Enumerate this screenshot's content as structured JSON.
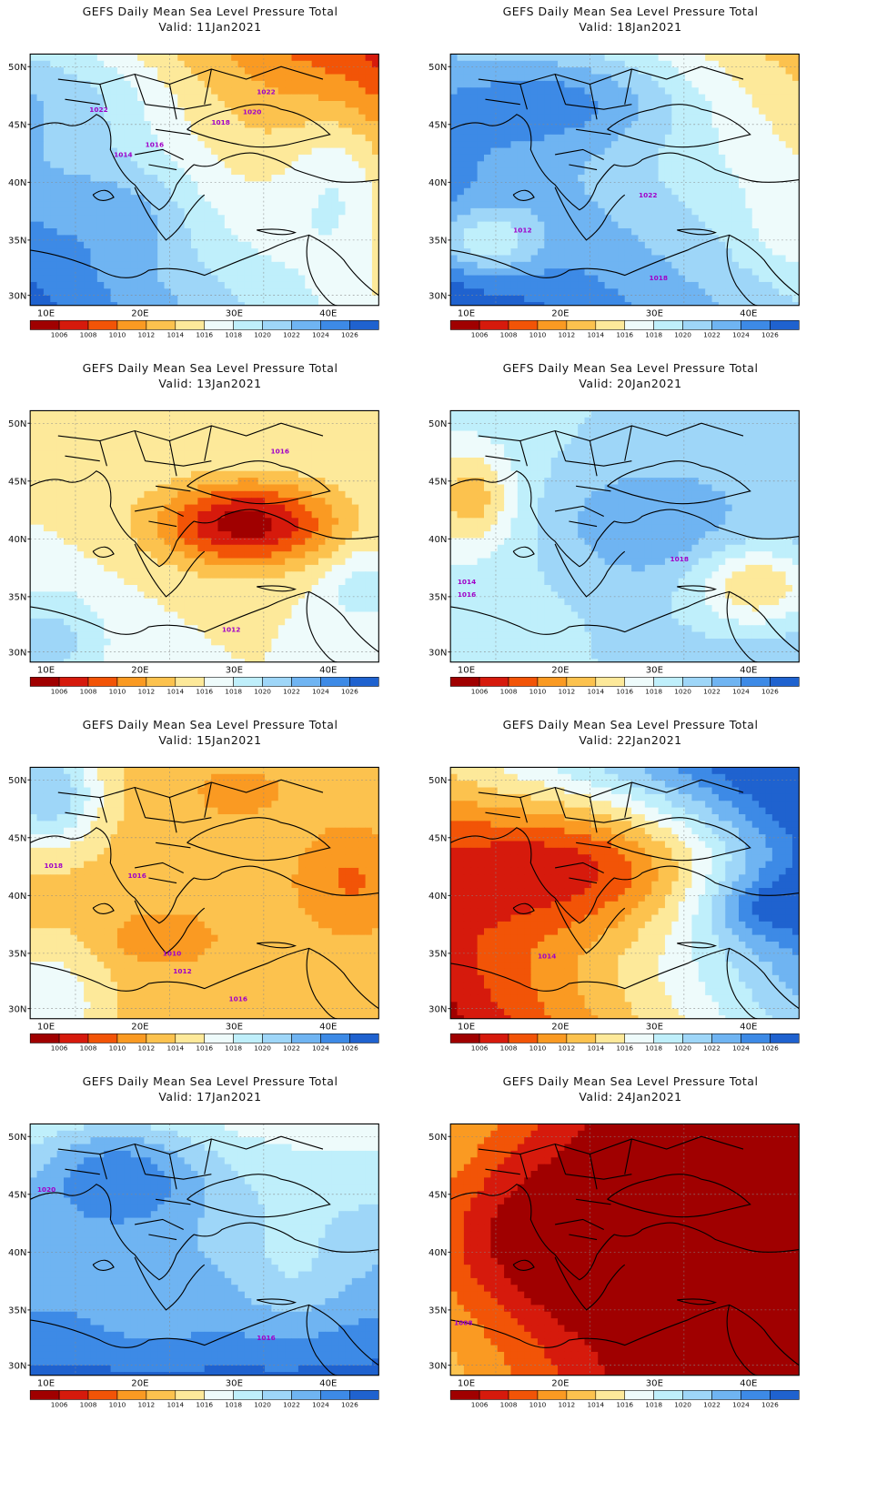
{
  "colorbar": {
    "labels": [
      "1006",
      "1008",
      "1010",
      "1012",
      "1014",
      "1016",
      "1018",
      "1020",
      "1022",
      "1024",
      "1026"
    ],
    "colors": [
      "#a00000",
      "#d61a0c",
      "#f25407",
      "#fa9a22",
      "#fcc24e",
      "#fde99a",
      "#eefbfb",
      "#bfeffb",
      "#9ed6f8",
      "#6fb4f2",
      "#3d8ae6",
      "#1f62cf"
    ]
  },
  "axes": {
    "lon_labels": [
      "10E",
      "20E",
      "30E",
      "40E"
    ],
    "lat_labels": [
      "50N",
      "45N",
      "40N",
      "35N",
      "30N"
    ]
  },
  "panels": [
    {
      "title": "GEFS Daily Mean Sea Level Pressure Total",
      "valid": "Valid:  11Jan2021",
      "contour_labels": [
        "1022",
        "1022",
        "1020",
        "1018",
        "1016",
        "1014"
      ]
    },
    {
      "title": "GEFS Daily Mean Sea Level Pressure Total",
      "valid": "Valid:  18Jan2021",
      "contour_labels": [
        "1022",
        "1012",
        "1018"
      ]
    },
    {
      "title": "GEFS Daily Mean Sea Level Pressure Total",
      "valid": "Valid:  13Jan2021",
      "contour_labels": [
        "1016",
        "1012"
      ]
    },
    {
      "title": "GEFS Daily Mean Sea Level Pressure Total",
      "valid": "Valid:  20Jan2021",
      "contour_labels": [
        "1018",
        "1014",
        "1016"
      ]
    },
    {
      "title": "GEFS Daily Mean Sea Level Pressure Total",
      "valid": "Valid:  15Jan2021",
      "contour_labels": [
        "1018",
        "1016",
        "1010",
        "1012",
        "1016"
      ]
    },
    {
      "title": "GEFS Daily Mean Sea Level Pressure Total",
      "valid": "Valid:  22Jan2021",
      "contour_labels": [
        "1014"
      ]
    },
    {
      "title": "GEFS Daily Mean Sea Level Pressure Total",
      "valid": "Valid:  17Jan2021",
      "contour_labels": [
        "1020",
        "1016"
      ]
    },
    {
      "title": "GEFS Daily Mean Sea Level Pressure Total",
      "valid": "Valid:  24Jan2021",
      "contour_labels": [
        "1008"
      ]
    }
  ]
}
